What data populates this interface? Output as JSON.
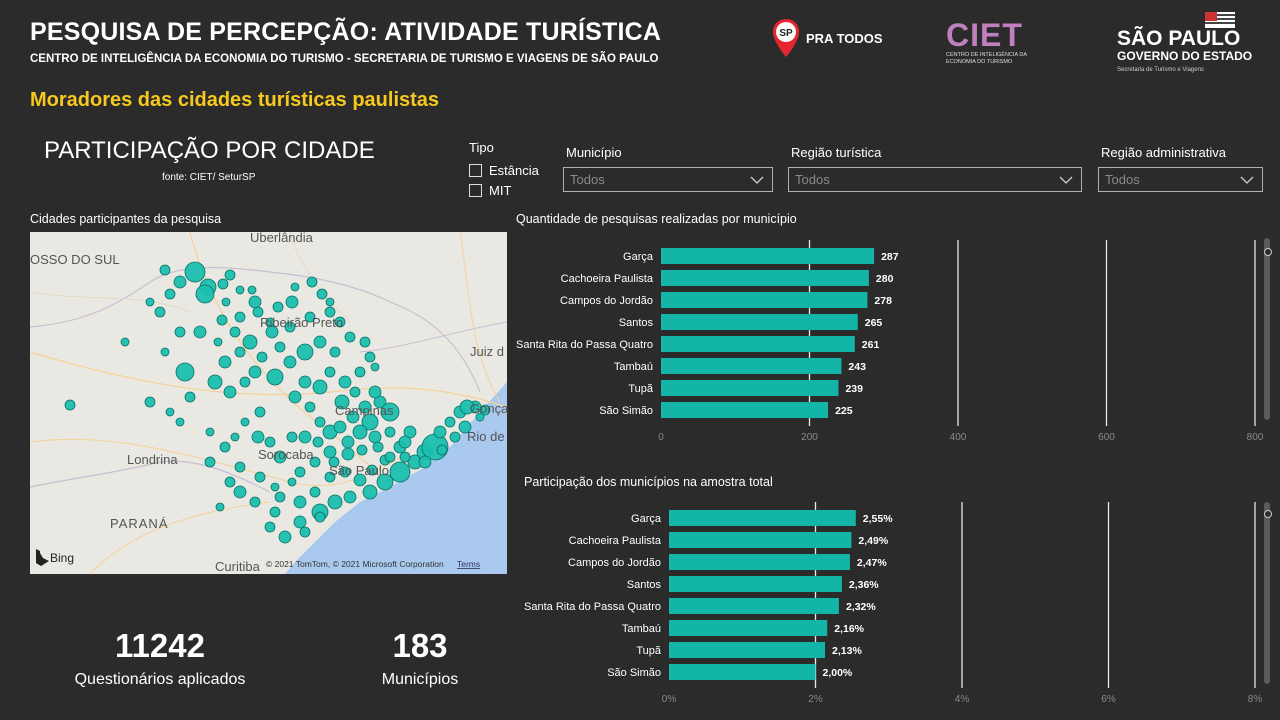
{
  "header": {
    "title": "PESQUISA DE PERCEPÇÃO: ATIVIDADE TURÍSTICA",
    "subtitle": "CENTRO DE INTELIGÊNCIA DA ECONOMIA DO TURISMO - SECRETARIA DE TURISMO E VIAGENS DE SÃO PAULO",
    "section": "Moradores das cidades turísticas paulistas"
  },
  "logos": {
    "sp_pra_todos": {
      "badge": "SP",
      "text": "PRA TODOS"
    },
    "ciet": {
      "big": "CIET",
      "small": "CENTRO DE INTELIGÊNCIA DA ECONOMIA DO TURISMO"
    },
    "gov": {
      "line1": "SÃO PAULO",
      "line2": "GOVERNO DO ESTADO",
      "line3": "Secretaria de Turismo e Viagens"
    }
  },
  "participacao": {
    "title": "PARTICIPAÇÃO POR CIDADE",
    "fonte": "fonte: CIET/ SeturSP"
  },
  "filters": {
    "tipo": {
      "label": "Tipo",
      "options": [
        "Estância",
        "MIT"
      ]
    },
    "municipio": {
      "label": "Município",
      "value": "Todos"
    },
    "regiao_turistica": {
      "label": "Região turística",
      "value": "Todos"
    },
    "regiao_administrativa": {
      "label": "Região administrativa",
      "value": "Todos"
    }
  },
  "map": {
    "title": "Cidades participantes da pesquisa",
    "labels": [
      "Uberlândia",
      "OSSO DO SUL",
      "Ribeirão Preto",
      "Juiz d",
      "Campinas",
      "Rio de",
      "Gonça",
      "Londrina",
      "Sorocaba",
      "São Paulo",
      "PARANÁ",
      "Curitiba"
    ],
    "attribution": "© 2021 TomTom, © 2021 Microsoft Corporation",
    "terms": "Terms",
    "bing": "Bing",
    "bubble_color": "#1bbfae"
  },
  "kpis": [
    {
      "value": "11242",
      "label": "Questionários aplicados"
    },
    {
      "value": "183",
      "label": "Municípios"
    }
  ],
  "chart_data": [
    {
      "type": "bar",
      "title": "Quantidade de pesquisas realizadas por município",
      "categories": [
        "Garça",
        "Cachoeira Paulista",
        "Campos do Jordão",
        "Santos",
        "Santa Rita do Passa Quatro",
        "Tambaú",
        "Tupã",
        "São Simão"
      ],
      "values": [
        287,
        280,
        278,
        265,
        261,
        243,
        239,
        225
      ],
      "data_labels": [
        "287",
        "280",
        "278",
        "265",
        "261",
        "243",
        "239",
        "225"
      ],
      "xlim": [
        0,
        800
      ],
      "ticks": [
        0,
        200,
        400,
        600,
        800
      ],
      "tick_labels": [
        "0",
        "200",
        "400",
        "600",
        "800"
      ],
      "bar_color": "#12b5a6",
      "grid": true
    },
    {
      "type": "bar",
      "title": "Participação dos municípios na amostra total",
      "categories": [
        "Garça",
        "Cachoeira Paulista",
        "Campos do Jordão",
        "Santos",
        "Santa Rita do Passa Quatro",
        "Tambaú",
        "Tupã",
        "São Simão"
      ],
      "values": [
        2.55,
        2.49,
        2.47,
        2.36,
        2.32,
        2.16,
        2.13,
        2.0
      ],
      "data_labels": [
        "2,55%",
        "2,49%",
        "2,47%",
        "2,36%",
        "2,32%",
        "2,16%",
        "2,13%",
        "2,00%"
      ],
      "xlim": [
        0,
        8
      ],
      "ticks": [
        0,
        2,
        4,
        6,
        8
      ],
      "tick_labels": [
        "0%",
        "2%",
        "4%",
        "6%",
        "8%"
      ],
      "bar_color": "#12b5a6",
      "grid": true
    }
  ]
}
